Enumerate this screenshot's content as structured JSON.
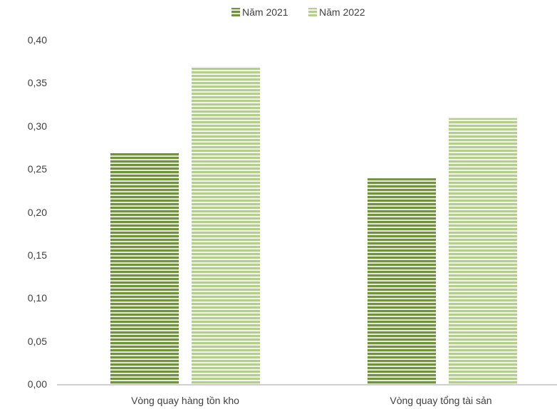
{
  "chart_data": {
    "type": "bar",
    "categories": [
      "Vòng quay hàng tồn kho",
      "Vòng quay tổng tài sản"
    ],
    "series": [
      {
        "name": "Năm 2021",
        "values": [
          0.27,
          0.24
        ],
        "color": "#70943a"
      },
      {
        "name": "Năm 2022",
        "values": [
          0.37,
          0.31
        ],
        "color": "#b4cf8a"
      }
    ],
    "y_ticks": [
      "0,00",
      "0,05",
      "0,10",
      "0,15",
      "0,20",
      "0,25",
      "0,30",
      "0,35",
      "0,40"
    ],
    "ylim": [
      0,
      0.4
    ],
    "grid": false,
    "legend_position": "top-center",
    "bar_fill": "horizontal-stripes"
  }
}
